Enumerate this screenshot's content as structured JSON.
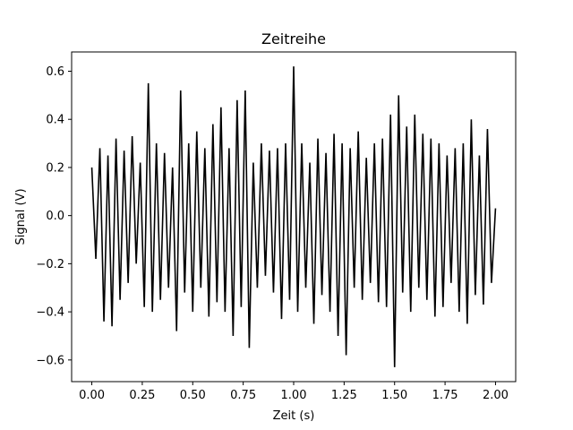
{
  "chart_data": {
    "type": "line",
    "title": "Zeitreihe",
    "xlabel": "Zeit  (s)",
    "ylabel": "Signal  (V)",
    "xlim": [
      -0.1,
      2.1
    ],
    "ylim": [
      -0.69,
      0.68
    ],
    "xticks": [
      0.0,
      0.25,
      0.5,
      0.75,
      1.0,
      1.25,
      1.5,
      1.75,
      2.0
    ],
    "xtick_labels": [
      "0.00",
      "0.25",
      "0.50",
      "0.75",
      "1.00",
      "1.25",
      "1.50",
      "1.75",
      "2.00"
    ],
    "yticks": [
      -0.6,
      -0.4,
      -0.2,
      0.0,
      0.2,
      0.4,
      0.6
    ],
    "ytick_labels": [
      "−0.6",
      "−0.4",
      "−0.2",
      "0.0",
      "0.2",
      "0.4",
      "0.6"
    ],
    "grid": false,
    "series": [
      {
        "color": "#000000",
        "x": [
          0.0,
          0.02,
          0.04,
          0.06,
          0.08,
          0.1,
          0.12,
          0.14,
          0.16,
          0.18,
          0.2,
          0.22,
          0.24,
          0.26,
          0.28,
          0.3,
          0.32,
          0.34,
          0.36,
          0.38,
          0.4,
          0.42,
          0.44,
          0.46,
          0.48,
          0.5,
          0.52,
          0.54,
          0.56,
          0.58,
          0.6,
          0.62,
          0.64,
          0.66,
          0.68,
          0.7,
          0.72,
          0.74,
          0.76,
          0.78,
          0.8,
          0.82,
          0.84,
          0.86,
          0.88,
          0.9,
          0.92,
          0.94,
          0.96,
          0.98,
          1.0,
          1.02,
          1.04,
          1.06,
          1.08,
          1.1,
          1.12,
          1.14,
          1.16,
          1.18,
          1.2,
          1.22,
          1.24,
          1.26,
          1.28,
          1.3,
          1.32,
          1.34,
          1.36,
          1.38,
          1.4,
          1.42,
          1.44,
          1.46,
          1.48,
          1.5,
          1.52,
          1.54,
          1.56,
          1.58,
          1.6,
          1.62,
          1.64,
          1.66,
          1.68,
          1.7,
          1.72,
          1.74,
          1.76,
          1.78,
          1.8,
          1.82,
          1.84,
          1.86,
          1.88,
          1.9,
          1.92,
          1.94,
          1.96,
          1.98,
          2.0
        ],
        "y": [
          0.2,
          -0.18,
          0.28,
          -0.44,
          0.25,
          -0.46,
          0.32,
          -0.35,
          0.27,
          -0.28,
          0.33,
          -0.2,
          0.22,
          -0.38,
          0.55,
          -0.4,
          0.3,
          -0.35,
          0.26,
          -0.3,
          0.2,
          -0.48,
          0.52,
          -0.32,
          0.3,
          -0.4,
          0.35,
          -0.3,
          0.28,
          -0.42,
          0.38,
          -0.36,
          0.45,
          -0.4,
          0.28,
          -0.5,
          0.48,
          -0.38,
          0.52,
          -0.55,
          0.22,
          -0.3,
          0.3,
          -0.25,
          0.27,
          -0.32,
          0.28,
          -0.43,
          0.3,
          -0.35,
          0.62,
          -0.4,
          0.3,
          -0.3,
          0.22,
          -0.45,
          0.32,
          -0.33,
          0.26,
          -0.4,
          0.34,
          -0.5,
          0.3,
          -0.58,
          0.28,
          -0.3,
          0.35,
          -0.35,
          0.24,
          -0.28,
          0.3,
          -0.36,
          0.32,
          -0.38,
          0.42,
          -0.63,
          0.5,
          -0.32,
          0.37,
          -0.4,
          0.42,
          -0.3,
          0.34,
          -0.35,
          0.32,
          -0.42,
          0.3,
          -0.38,
          0.25,
          -0.28,
          0.28,
          -0.4,
          0.3,
          -0.45,
          0.4,
          -0.33,
          0.25,
          -0.37,
          0.36,
          -0.28,
          0.03
        ]
      }
    ]
  }
}
